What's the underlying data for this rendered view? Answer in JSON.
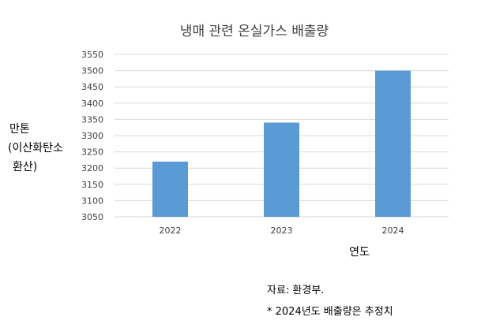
{
  "chart_data": {
    "type": "bar",
    "title": "냉매 관련 온실가스 배출량",
    "categories": [
      "2022",
      "2023",
      "2024"
    ],
    "values": [
      3220,
      3340,
      3500
    ],
    "ylim": [
      3050,
      3550
    ],
    "yticks": [
      3550,
      3500,
      3450,
      3400,
      3350,
      3300,
      3250,
      3200,
      3150,
      3100,
      3050
    ],
    "ylabel": [
      "만톤",
      "(이산화탄소",
      "환산)"
    ],
    "xlabel": "연도",
    "grid": true,
    "bar_color": "#5b9bd5",
    "grid_color": "#d9d9d9",
    "notes": [
      "자료: 환경부.",
      "* 2024년도 배출량은 추정치"
    ]
  }
}
